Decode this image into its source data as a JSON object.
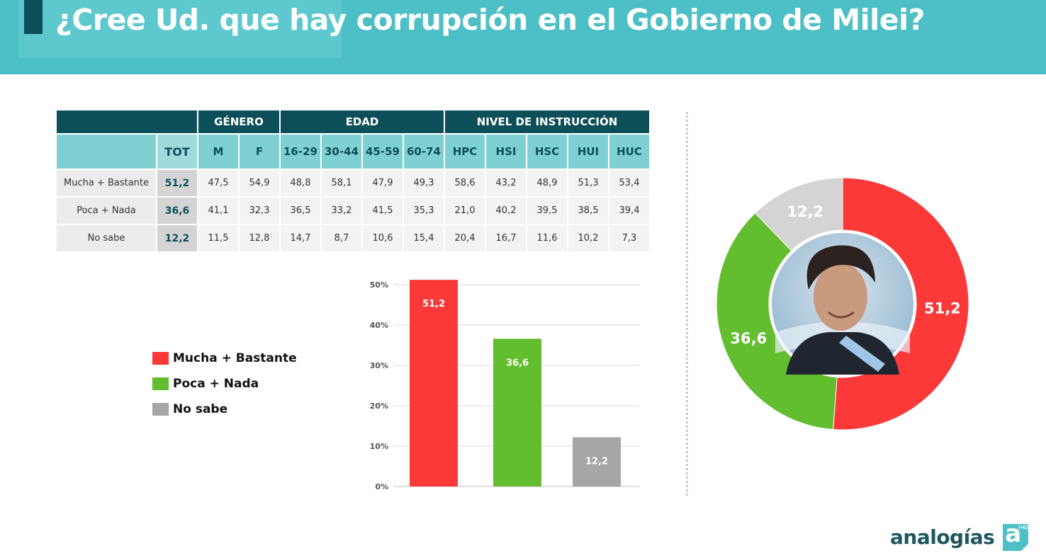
{
  "header": {
    "title": "¿Cree Ud. que hay corrupción en el Gobierno de Milei?"
  },
  "table": {
    "groups": [
      "GÉNERO",
      "EDAD",
      "NIVEL DE INSTRUCCIÓN"
    ],
    "columns": [
      "TOT",
      "M",
      "F",
      "16-29",
      "30-44",
      "45-59",
      "60-74",
      "HPC",
      "HSI",
      "HSC",
      "HUI",
      "HUC"
    ],
    "rows": [
      {
        "label": "Mucha + Bastante",
        "values": [
          "51,2",
          "47,5",
          "54,9",
          "48,8",
          "58,1",
          "47,9",
          "49,3",
          "58,6",
          "43,2",
          "48,9",
          "51,3",
          "53,4"
        ]
      },
      {
        "label": "Poca + Nada",
        "values": [
          "36,6",
          "41,1",
          "32,3",
          "36,5",
          "33,2",
          "41,5",
          "35,3",
          "21,0",
          "40,2",
          "39,5",
          "38,5",
          "39,4"
        ]
      },
      {
        "label": "No sabe",
        "values": [
          "12,2",
          "11,5",
          "12,8",
          "14,7",
          "8,7",
          "10,6",
          "15,4",
          "20,4",
          "16,7",
          "11,6",
          "10,2",
          "7,3"
        ]
      }
    ]
  },
  "legend": [
    {
      "label": "Mucha + Bastante",
      "color": "#fc3939"
    },
    {
      "label": "Poca + Nada",
      "color": "#62bd2f"
    },
    {
      "label": "No sabe",
      "color": "#a6a6a6"
    }
  ],
  "chart_data": [
    {
      "type": "bar",
      "categories": [
        "Mucha + Bastante",
        "Poca + Nada",
        "No sabe"
      ],
      "values": [
        51.2,
        36.6,
        12.2
      ],
      "data_labels": [
        "51,2",
        "36,6",
        "12,2"
      ],
      "colors": [
        "#fc3939",
        "#62bd2f",
        "#a6a6a6"
      ],
      "ylim": [
        0,
        50
      ],
      "y_ticks": [
        0,
        10,
        20,
        30,
        40,
        50
      ],
      "y_tick_labels": [
        "0%",
        "10%",
        "20%",
        "30%",
        "40%",
        "50%"
      ],
      "grid": true
    },
    {
      "type": "pie",
      "donut": true,
      "categories": [
        "Mucha + Bastante",
        "Poca + Nada",
        "No sabe"
      ],
      "values": [
        51.2,
        36.6,
        12.2
      ],
      "data_labels": [
        "51,2",
        "36,6",
        "12,2"
      ],
      "colors": [
        "#fc3939",
        "#62bd2f",
        "#d4d4d4"
      ],
      "center_image": "portrait-photo"
    }
  ],
  "logo": {
    "text": "analogías",
    "badge_letter": "a",
    "badge_sup": "(+E)",
    "color": "#4dbfc6"
  }
}
